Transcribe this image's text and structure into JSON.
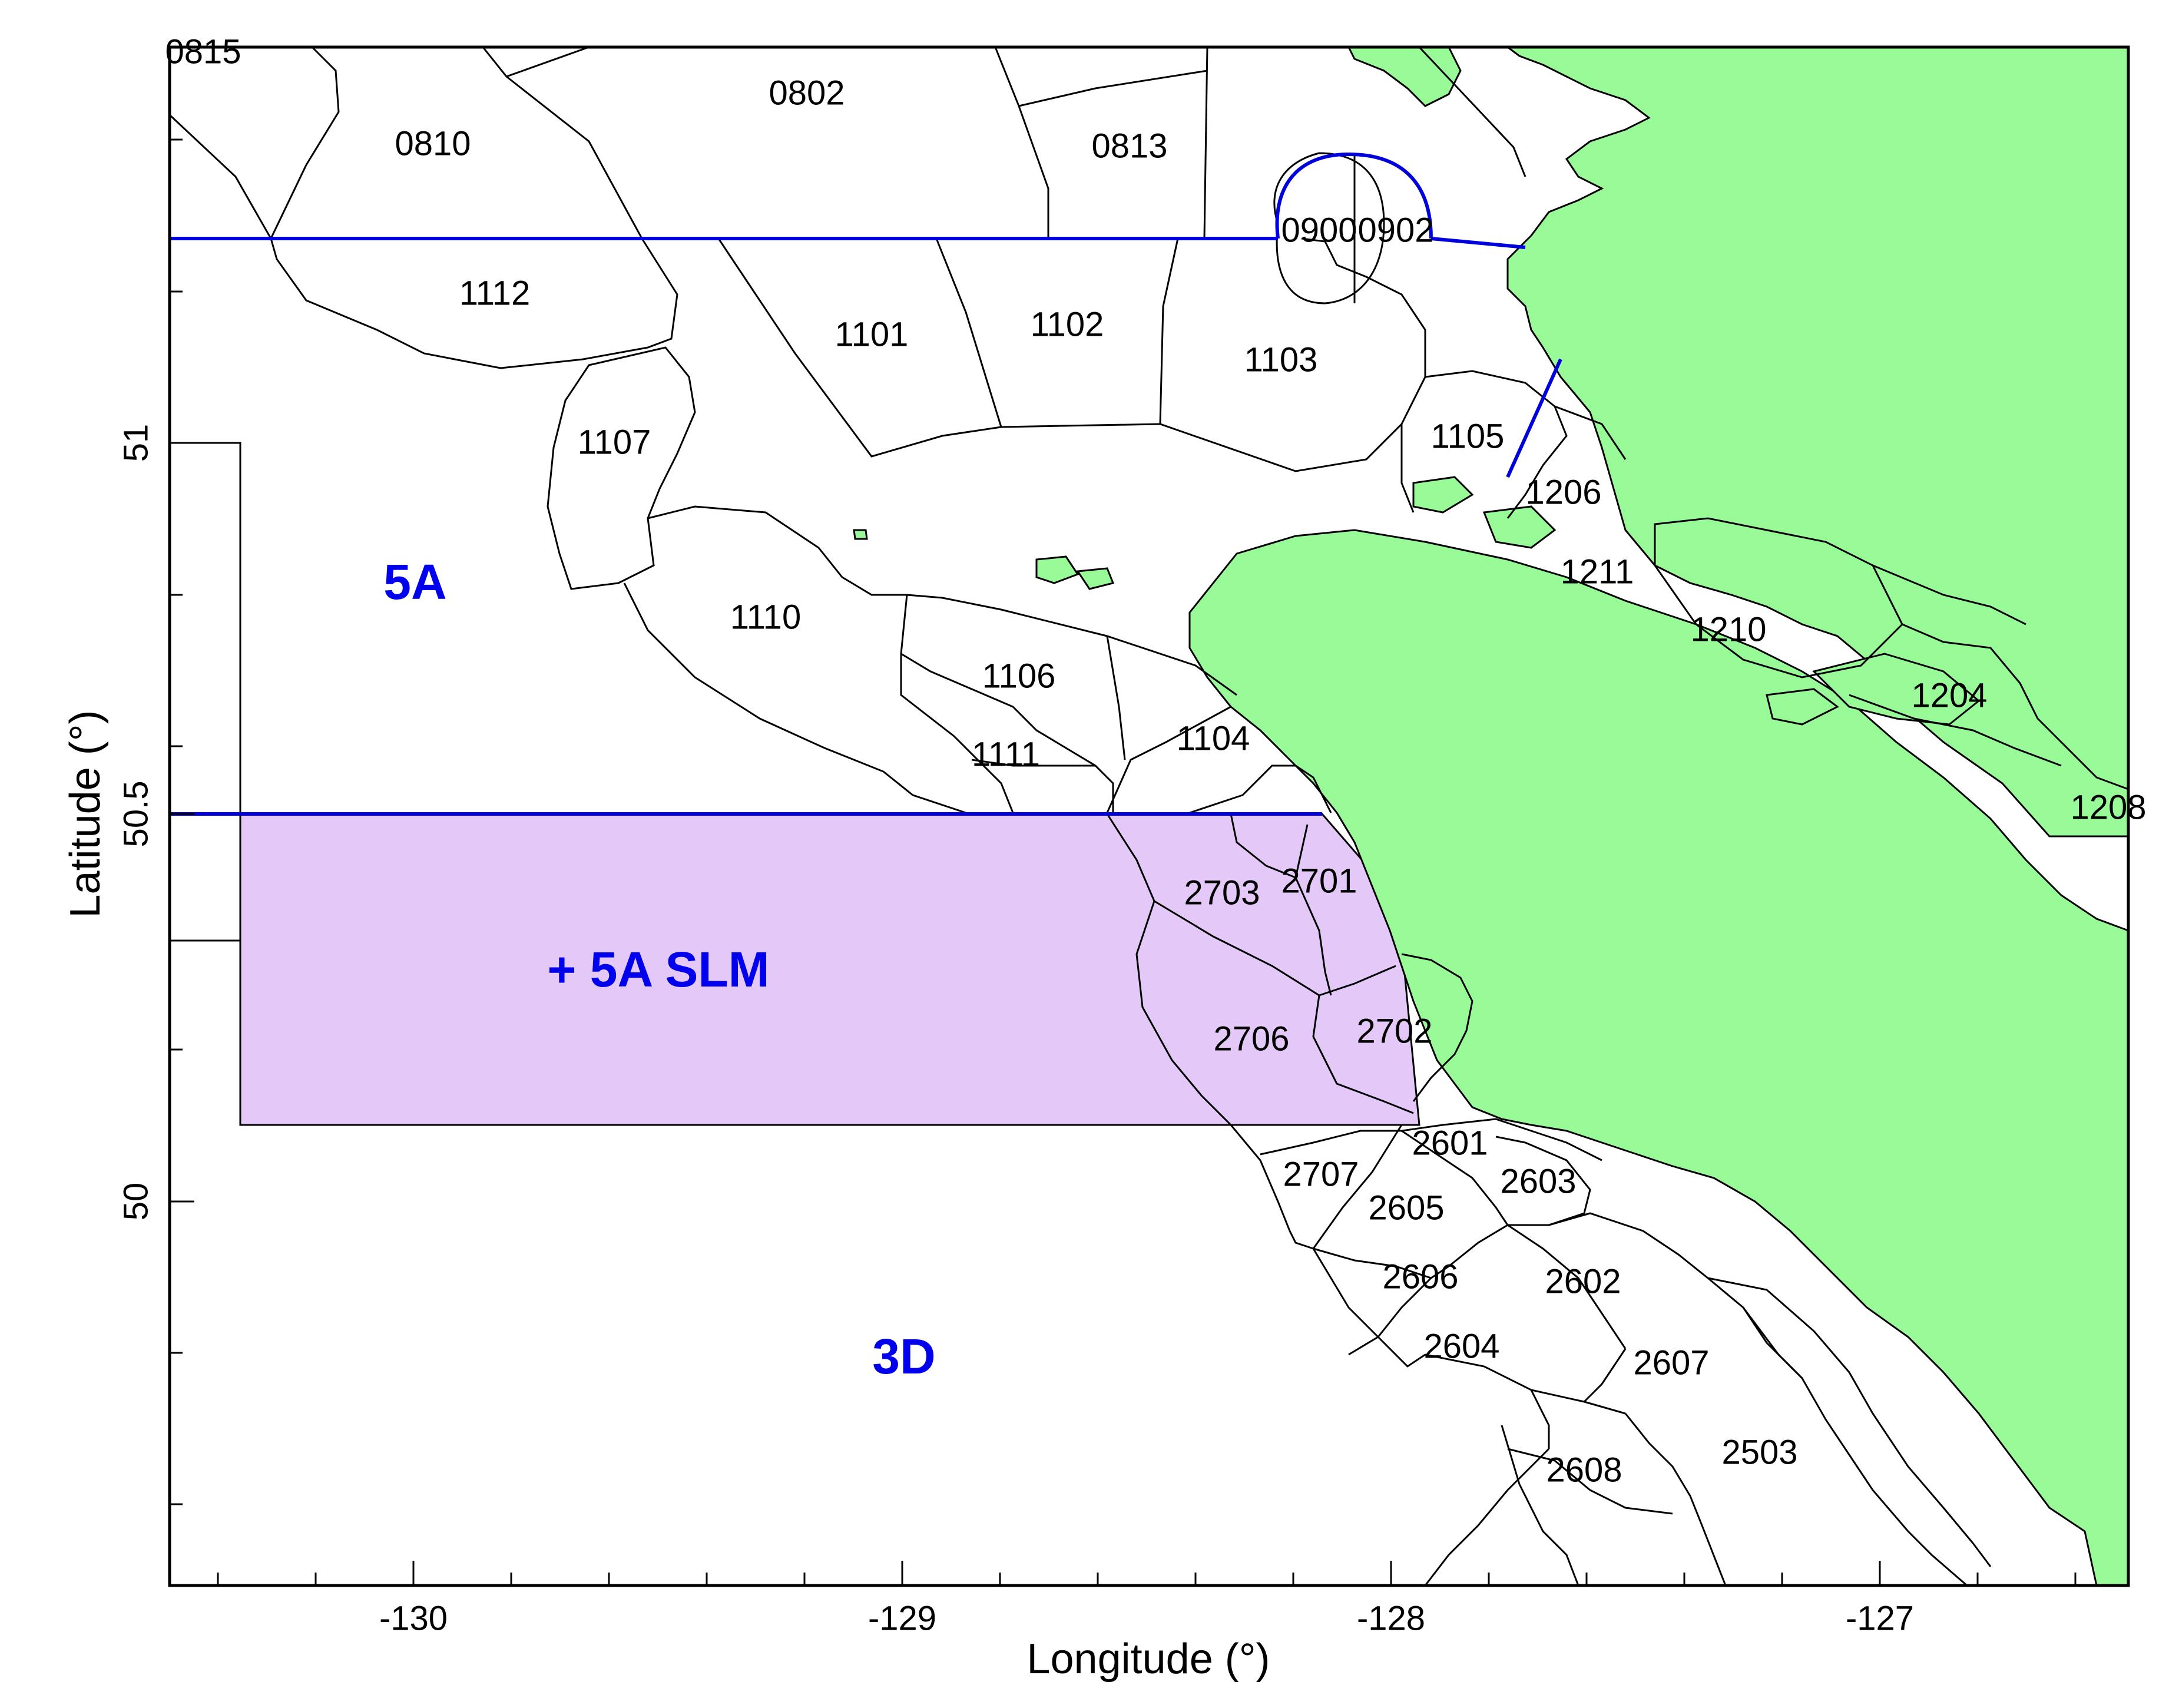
{
  "axes": {
    "xlabel": "Longitude (°)",
    "ylabel": "Latitude (°)",
    "x_ticks": [
      "-130",
      "-129",
      "-128",
      "-127"
    ],
    "y_ticks": [
      "51",
      "50.5",
      "50"
    ]
  },
  "regions": {
    "r5a": "5A",
    "r5a_slm": "+ 5A SLM",
    "r3d": "3D"
  },
  "colors": {
    "land": "#98fb98",
    "slm_fill": "#e3c8f8",
    "boundary_blue": "#0000dd",
    "region_label": "#0000ee"
  },
  "areas": [
    "0815",
    "0802",
    "0810",
    "0813",
    "0900",
    "0902",
    "1112",
    "1101",
    "1102",
    "1103",
    "1107",
    "1105",
    "1206",
    "1110",
    "1106",
    "1111",
    "1104",
    "1210",
    "1204",
    "1208",
    "2703",
    "2701",
    "2706",
    "2702",
    "2601",
    "2707",
    "2603",
    "2605",
    "2606",
    "2602",
    "2604",
    "2607",
    "2608",
    "2503",
    "1211"
  ]
}
